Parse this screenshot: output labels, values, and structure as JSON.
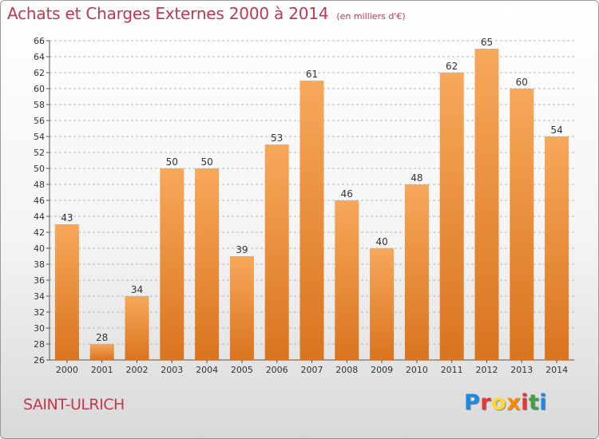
{
  "header": {
    "title": "Achats et Charges Externes 2000 à 2014",
    "subtitle": "(en milliers d'€)"
  },
  "commune": "SAINT-ULRICH",
  "logo": {
    "text": "Proxiti"
  },
  "colors": {
    "bar_top": "#f7a85b",
    "bar_bottom": "#d9741f",
    "title": "#c0394f",
    "grid": "#b8b8b8"
  },
  "chart_data": {
    "type": "bar",
    "title": "Achats et Charges Externes 2000 à 2014",
    "categories": [
      "2000",
      "2001",
      "2002",
      "2003",
      "2004",
      "2005",
      "2006",
      "2007",
      "2008",
      "2009",
      "2010",
      "2011",
      "2012",
      "2013",
      "2014"
    ],
    "values": [
      43,
      28,
      34,
      50,
      50,
      39,
      53,
      61,
      46,
      40,
      48,
      62,
      65,
      60,
      54
    ],
    "ylim": [
      26,
      66
    ],
    "ytick_step": 2,
    "grid": true,
    "data_labels": true
  }
}
